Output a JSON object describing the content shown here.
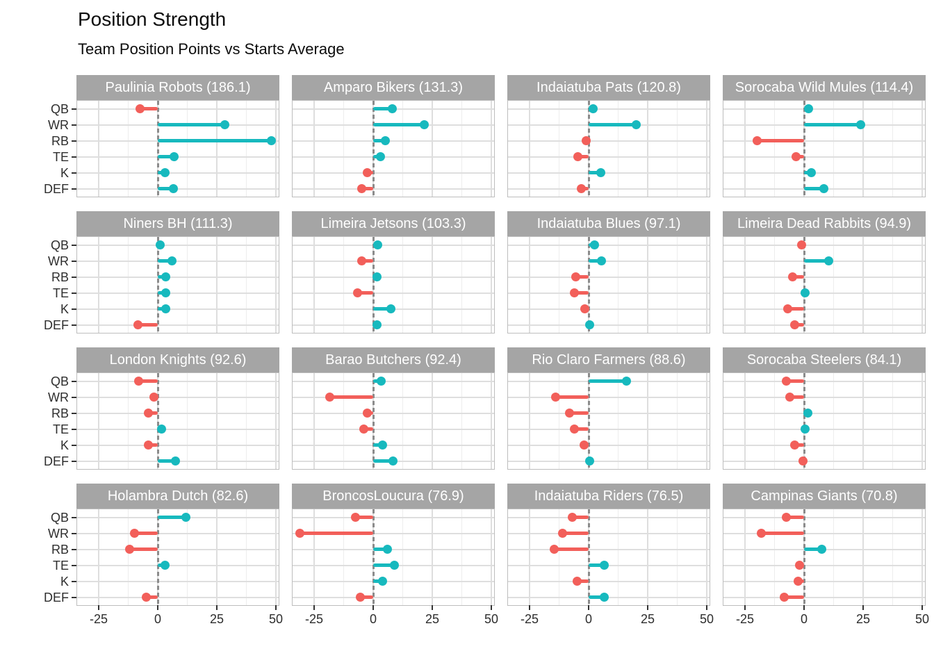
{
  "title": "Position Strength",
  "subtitle": "Team Position Points vs Starts Average",
  "colors": {
    "positive": "#17B9BE",
    "negative": "#F25F5A",
    "strip_bg": "#A5A5A5",
    "strip_text": "#FFFFFF",
    "zero_line": "#8C8C8C",
    "grid_major": "#DEDEDE",
    "grid_minor": "#EDEDED",
    "axis_text": "#2E2E2E",
    "tick_mark": "#333333"
  },
  "chart_data": {
    "type": "bar",
    "subtype": "lollipop-small-multiples",
    "title": "Position Strength",
    "subtitle": "Team Position Points vs Starts Average",
    "categories": [
      "QB",
      "WR",
      "RB",
      "TE",
      "K",
      "DEF"
    ],
    "x_axis": {
      "tick_labels": [
        "-25",
        "0",
        "25",
        "50"
      ],
      "tick_values": [
        -25,
        0,
        25,
        50
      ],
      "minor_tick_values": [
        -12.5,
        12.5,
        37.5
      ],
      "range": [
        -34,
        52
      ],
      "zero_reference_line": "dashed"
    },
    "legend": "none",
    "grid": "on",
    "facets": [
      {
        "team": "Paulinia Robots",
        "total": 186.1,
        "label": "Paulinia Robots (186.1)",
        "values": [
          -7.5,
          28.5,
          48,
          7,
          3,
          6.5
        ]
      },
      {
        "team": "Amparo Bikers",
        "total": 131.3,
        "label": "Amparo Bikers (131.3)",
        "values": [
          8,
          21.5,
          5,
          3,
          -2.5,
          -5
        ]
      },
      {
        "team": "Indaiatuba Pats",
        "total": 120.8,
        "label": "Indaiatuba Pats (120.8)",
        "values": [
          2,
          20,
          -1,
          -4.5,
          5,
          -3
        ]
      },
      {
        "team": "Sorocaba Wild Mules",
        "total": 114.4,
        "label": "Sorocaba Wild Mules (114.4)",
        "values": [
          2,
          24,
          -20,
          -3.5,
          3,
          8.5
        ]
      },
      {
        "team": "Niners BH",
        "total": 111.3,
        "label": "Niners BH (111.3)",
        "values": [
          1,
          6,
          3.5,
          3.5,
          3.5,
          -8.5
        ]
      },
      {
        "team": "Limeira Jetsons",
        "total": 103.3,
        "label": "Limeira Jetsons (103.3)",
        "values": [
          2,
          -5,
          1.5,
          -6.5,
          7.5,
          1.5
        ]
      },
      {
        "team": "Indaiatuba Blues",
        "total": 97.1,
        "label": "Indaiatuba Blues (97.1)",
        "values": [
          2.5,
          5.5,
          -5.5,
          -6,
          -1.5,
          0.5
        ]
      },
      {
        "team": "Limeira Dead Rabbits",
        "total": 94.9,
        "label": "Limeira Dead Rabbits (94.9)",
        "values": [
          -1,
          10.5,
          -5,
          0.5,
          -7,
          -4
        ]
      },
      {
        "team": "London Knights",
        "total": 92.6,
        "label": "London Knights (92.6)",
        "values": [
          -8,
          -1.5,
          -4,
          1.5,
          -4,
          7.5
        ]
      },
      {
        "team": "Barao Butchers",
        "total": 92.4,
        "label": "Barao Butchers (92.4)",
        "values": [
          3.5,
          -18.5,
          -2.5,
          -4,
          4,
          8.5
        ]
      },
      {
        "team": "Rio Claro Farmers",
        "total": 88.6,
        "label": "Rio Claro Farmers (88.6)",
        "values": [
          16,
          -14,
          -8,
          -6,
          -2,
          0.5
        ]
      },
      {
        "team": "Sorocaba Steelers",
        "total": 84.1,
        "label": "Sorocaba Steelers (84.1)",
        "values": [
          -7.5,
          -6,
          1.5,
          0.5,
          -4,
          -0.5
        ]
      },
      {
        "team": "Holambra Dutch",
        "total": 82.6,
        "label": "Holambra Dutch (82.6)",
        "values": [
          12,
          -10,
          -12,
          3,
          null,
          -5
        ]
      },
      {
        "team": "BroncosLoucura",
        "total": 76.9,
        "label": "BroncosLoucura (76.9)",
        "values": [
          -7.5,
          -31,
          6,
          9,
          4,
          -5.5
        ]
      },
      {
        "team": "Indaiatuba Riders",
        "total": 76.5,
        "label": "Indaiatuba Riders (76.5)",
        "values": [
          -7,
          -11,
          -14.5,
          6.5,
          -5,
          6.5
        ]
      },
      {
        "team": "Campinas Giants",
        "total": 70.8,
        "label": "Campinas Giants (70.8)",
        "values": [
          -7.5,
          -18,
          7.5,
          -2,
          -2.5,
          -8.5
        ]
      }
    ]
  }
}
